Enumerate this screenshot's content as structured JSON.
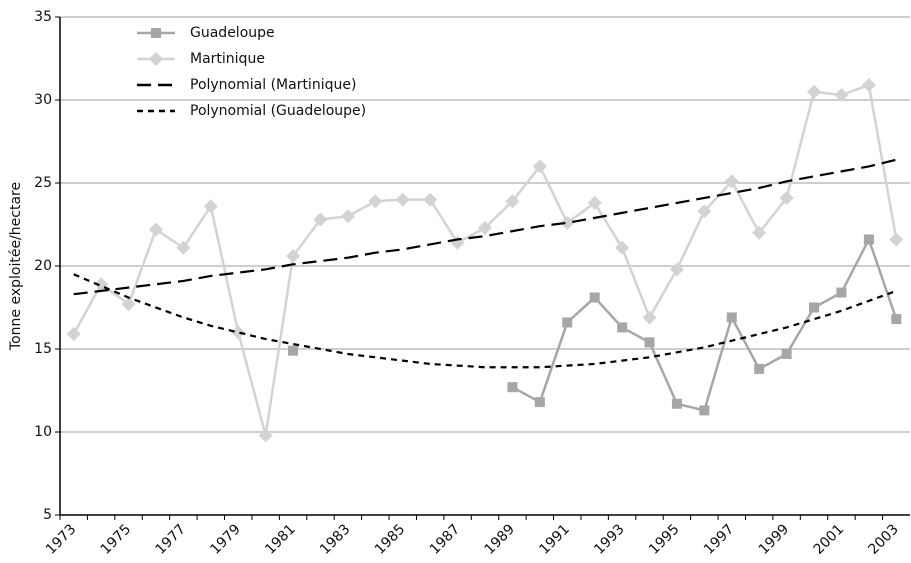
{
  "chart_data": {
    "type": "line",
    "y_label": "Tonne exploitée/hectare",
    "categories": [
      "1973",
      null,
      "1975",
      null,
      "1977",
      null,
      "1979",
      null,
      "1981",
      null,
      "1983",
      null,
      "1985",
      null,
      "1987",
      null,
      "1989",
      null,
      "1991",
      null,
      "1993",
      null,
      "1995",
      null,
      "1997",
      null,
      "1999",
      null,
      "2001",
      null,
      "2003"
    ],
    "series": [
      {
        "name": "Guadeloupe",
        "color": "#a6a6a6",
        "marker": "square",
        "dash": "solid",
        "values": [
          null,
          null,
          null,
          null,
          null,
          null,
          null,
          null,
          14.9,
          null,
          null,
          null,
          null,
          null,
          null,
          null,
          12.7,
          11.8,
          16.6,
          18.1,
          16.3,
          15.4,
          11.7,
          11.3,
          16.9,
          13.8,
          14.7,
          17.5,
          18.4,
          21.6,
          16.8
        ]
      },
      {
        "name": "Martinique",
        "color": "#d3d3d3",
        "marker": "diamond",
        "dash": "solid",
        "values": [
          15.9,
          18.9,
          17.7,
          22.2,
          21.1,
          23.6,
          16.0,
          9.8,
          20.6,
          22.8,
          23.0,
          23.9,
          24.0,
          24.0,
          21.4,
          22.3,
          23.9,
          26.0,
          22.6,
          23.8,
          21.1,
          16.9,
          19.8,
          23.3,
          25.1,
          22.0,
          24.1,
          30.5,
          30.3,
          30.9,
          21.6
        ]
      },
      {
        "name": "Polynomial (Martinique)",
        "color": "#000000",
        "marker": "none",
        "dash": "long",
        "values": [
          18.3,
          18.5,
          18.7,
          18.9,
          19.1,
          19.4,
          19.6,
          19.8,
          20.1,
          20.3,
          20.5,
          20.8,
          21.0,
          21.3,
          21.6,
          21.8,
          22.1,
          22.4,
          22.6,
          22.9,
          23.2,
          23.5,
          23.8,
          24.1,
          24.4,
          24.7,
          25.1,
          25.4,
          25.7,
          26.0,
          26.4
        ]
      },
      {
        "name": "Polynomial (Guadeloupe)",
        "color": "#000000",
        "marker": "none",
        "dash": "short",
        "values": [
          19.5,
          18.8,
          18.1,
          17.5,
          16.9,
          16.4,
          16.0,
          15.6,
          15.3,
          15.0,
          14.7,
          14.5,
          14.3,
          14.1,
          14.0,
          13.9,
          13.9,
          13.9,
          14.0,
          14.1,
          14.3,
          14.5,
          14.8,
          15.1,
          15.5,
          15.9,
          16.3,
          16.8,
          17.3,
          17.9,
          18.5
        ]
      }
    ],
    "ylim": [
      5,
      35
    ],
    "yticks": [
      5,
      10,
      15,
      20,
      25,
      30,
      35
    ],
    "grid": true,
    "legend": "top-left"
  }
}
